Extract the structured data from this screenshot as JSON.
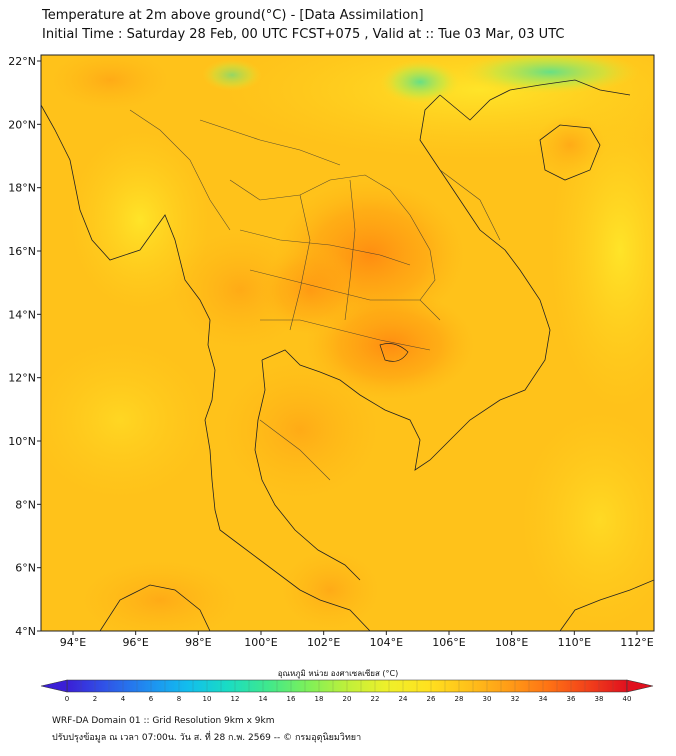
{
  "title": {
    "line1": "Temperature at 2m above ground(°C) - [Data Assimilation]",
    "line2": "Initial Time : Saturday 28 Feb, 00 UTC FCST+075 , Valid at :: Tue 03 Mar, 03 UTC"
  },
  "axes": {
    "lat_ticks": [
      "22°N",
      "20°N",
      "18°N",
      "16°N",
      "14°N",
      "12°N",
      "10°N",
      "8°N",
      "6°N",
      "4°N"
    ],
    "lon_ticks": [
      "94°E",
      "96°E",
      "98°E",
      "100°E",
      "102°E",
      "104°E",
      "106°E",
      "108°E",
      "110°E",
      "112°E"
    ]
  },
  "colorbar": {
    "label": "อุณหภูมิ หน่วย องศาเซลเซียส (°C)",
    "ticks": [
      "0",
      "2",
      "4",
      "6",
      "8",
      "10",
      "12",
      "14",
      "16",
      "18",
      "20",
      "22",
      "24",
      "26",
      "28",
      "30",
      "32",
      "34",
      "36",
      "38",
      "40"
    ],
    "colors": [
      "#3b1fd6",
      "#2f56e8",
      "#1f8cf0",
      "#12bdee",
      "#19dcc4",
      "#3ee88e",
      "#7cf05a",
      "#bff03a",
      "#eef02a",
      "#ffe21f",
      "#ffc21a",
      "#ff9e17",
      "#ff7414",
      "#f2421a",
      "#e0101e"
    ]
  },
  "footer": {
    "line1": "WRF-DA Domain 01 :: Grid Resolution 9km x 9km",
    "line2": "ปรับปรุงข้อมูล ณ เวลา 07:00น. วัน ส. ที่ 28 ก.พ. 2569 -- © กรมอุตุนิยมวิทยา"
  }
}
